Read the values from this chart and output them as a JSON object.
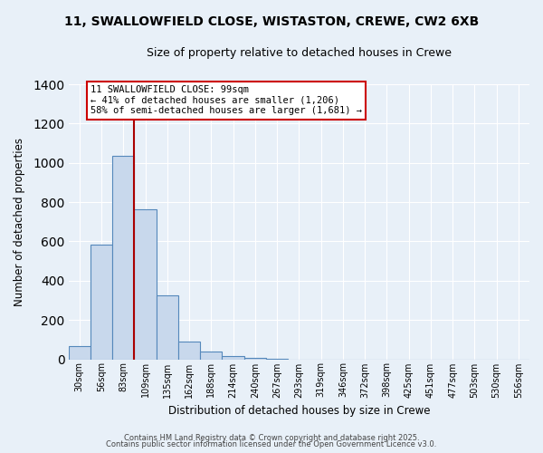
{
  "title": "11, SWALLOWFIELD CLOSE, WISTASTON, CREWE, CW2 6XB",
  "subtitle": "Size of property relative to detached houses in Crewe",
  "xlabel": "Distribution of detached houses by size in Crewe",
  "ylabel": "Number of detached properties",
  "bar_values": [
    65,
    585,
    1035,
    765,
    325,
    90,
    38,
    18,
    5,
    2,
    0,
    0,
    0,
    0,
    0,
    0,
    0,
    0,
    0,
    0,
    0
  ],
  "bar_labels": [
    "30sqm",
    "56sqm",
    "83sqm",
    "109sqm",
    "135sqm",
    "162sqm",
    "188sqm",
    "214sqm",
    "240sqm",
    "267sqm",
    "293sqm",
    "319sqm",
    "346sqm",
    "372sqm",
    "398sqm",
    "425sqm",
    "451sqm",
    "477sqm",
    "503sqm",
    "530sqm",
    "556sqm"
  ],
  "bar_color": "#c8d8ec",
  "bar_edge_color": "#5588bb",
  "vline_color": "#aa0000",
  "vline_index": 2.5,
  "annotation_title": "11 SWALLOWFIELD CLOSE: 99sqm",
  "annotation_line1": "← 41% of detached houses are smaller (1,206)",
  "annotation_line2": "58% of semi-detached houses are larger (1,681) →",
  "annotation_box_color": "#ffffff",
  "annotation_box_edge_color": "#cc0000",
  "ylim": [
    0,
    1400
  ],
  "yticks": [
    0,
    200,
    400,
    600,
    800,
    1000,
    1200,
    1400
  ],
  "background_color": "#e8f0f8",
  "grid_color": "#ffffff",
  "footer1": "Contains HM Land Registry data © Crown copyright and database right 2025.",
  "footer2": "Contains public sector information licensed under the Open Government Licence v3.0."
}
